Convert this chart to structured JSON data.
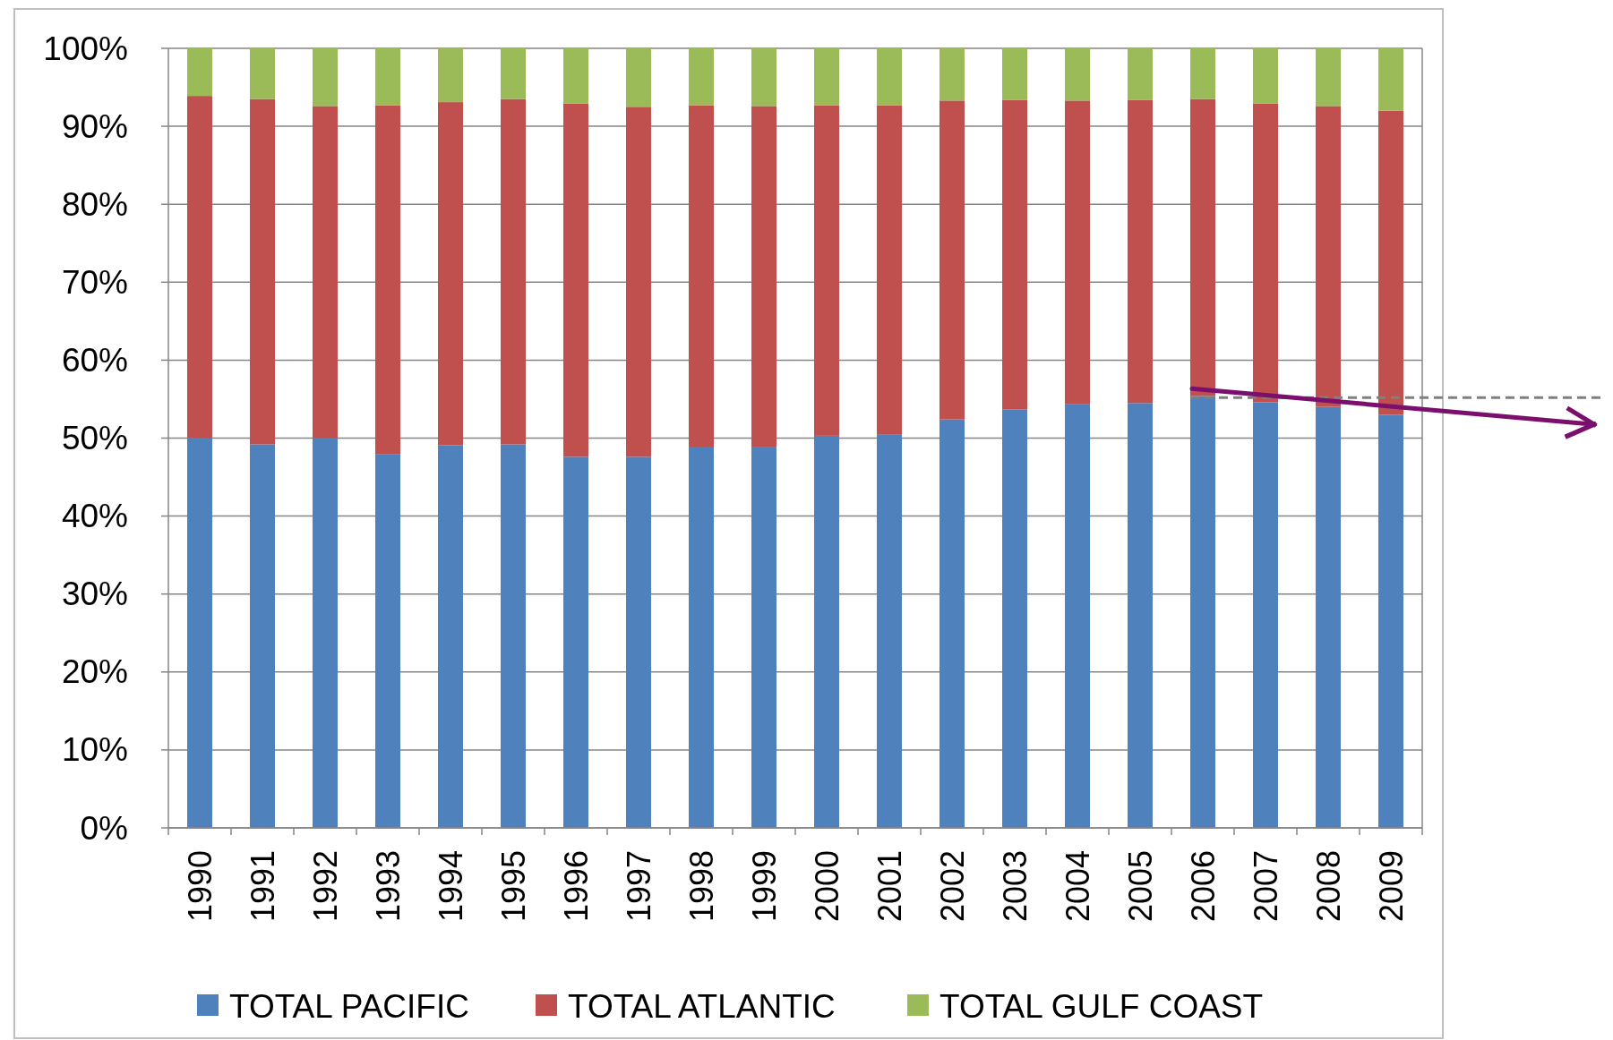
{
  "chart_data": {
    "type": "bar",
    "stacked": true,
    "categories": [
      "1990",
      "1991",
      "1992",
      "1993",
      "1994",
      "1995",
      "1996",
      "1997",
      "1998",
      "1999",
      "2000",
      "2001",
      "2002",
      "2003",
      "2004",
      "2005",
      "2006",
      "2007",
      "2008",
      "2009"
    ],
    "series": [
      {
        "name": "TOTAL PACIFIC",
        "color": "#4f81bd",
        "values": [
          50,
          49.2,
          50,
          47.9,
          49.1,
          49.2,
          47.6,
          47.6,
          48.8,
          48.9,
          50.3,
          50.5,
          52.4,
          53.7,
          54.4,
          54.5,
          55.4,
          54.6,
          54,
          53
        ]
      },
      {
        "name": "TOTAL ATLANTIC",
        "color": "#c0504d",
        "values": [
          43.9,
          44.3,
          42.6,
          44.8,
          44,
          44.3,
          45.3,
          44.9,
          43.9,
          43.7,
          42.4,
          42.2,
          40.9,
          39.7,
          38.9,
          38.9,
          38.1,
          38.3,
          38.6,
          39
        ]
      },
      {
        "name": "TOTAL GULF COAST",
        "color": "#9bbb59",
        "values": [
          6.1,
          6.5,
          7.4,
          7.3,
          6.9,
          6.5,
          7.1,
          7.5,
          7.3,
          7.4,
          7.3,
          7.3,
          6.7,
          6.6,
          6.7,
          6.6,
          6.5,
          7.1,
          7.4,
          8
        ]
      }
    ],
    "ylim": [
      0,
      100
    ],
    "yticks": [
      {
        "value": 0,
        "label": "0%"
      },
      {
        "value": 10,
        "label": "10%"
      },
      {
        "value": 20,
        "label": "20%"
      },
      {
        "value": 30,
        "label": "30%"
      },
      {
        "value": 40,
        "label": "40%"
      },
      {
        "value": 50,
        "label": "50%"
      },
      {
        "value": 60,
        "label": "60%"
      },
      {
        "value": 70,
        "label": "70%"
      },
      {
        "value": 80,
        "label": "80%"
      },
      {
        "value": 90,
        "label": "90%"
      },
      {
        "value": 100,
        "label": "100%"
      }
    ],
    "grid": "y",
    "legend": "bottom",
    "ref_lines": [
      {
        "axis": "y",
        "value": 55.2,
        "color": "#808080",
        "line_style": "dashed"
      }
    ]
  }
}
